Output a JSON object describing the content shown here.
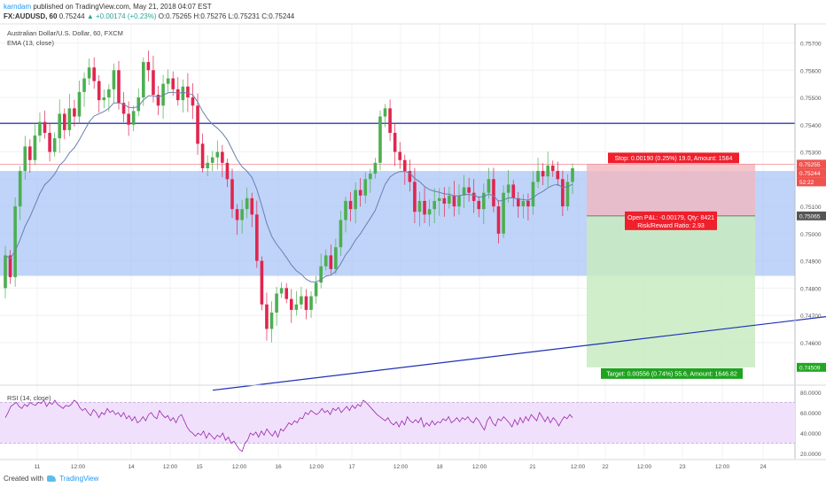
{
  "header": {
    "user": "karndam",
    "published": "published on TradingView.com, May 21, 2018 04:07 EST",
    "symbol": "FX:AUDUSD, 60",
    "last": "0.75244",
    "change_arrow": "▲",
    "change": "+0.00174 (+0.23%)",
    "ohlc": "O:0.75265 H:0.75276 L:0.75231 C:0.75244"
  },
  "labels": {
    "title": "Australian Dollar/U.S. Dollar, 60, FXCM",
    "ema": "EMA (13, close)",
    "rsi": "RSI (14, close)"
  },
  "footer": {
    "created": "Created with",
    "brand": "TradingView"
  },
  "colors": {
    "up": "#26a69a",
    "down": "#ef5350",
    "candle_up": "#4caf50",
    "candle_down": "#e0254f",
    "trendline": "#1f2fb8",
    "ema": "#6a7fb0",
    "zone": "#a9c5f5",
    "stop": "#f2b6bf",
    "target": "#c8ebc0",
    "rsi_band": "#f0e0fb",
    "rsi_line": "#9c27b0"
  },
  "chart_data": {
    "type": "candlestick",
    "symbol": "FX:AUDUSD",
    "interval": "60",
    "ylim": [
      0.7445,
      0.7577
    ],
    "price_ticks": [
      "0.75700",
      "0.75600",
      "0.75500",
      "0.75400",
      "0.75300",
      "0.75200",
      "0.75100",
      "0.75000",
      "0.74900",
      "0.74800",
      "0.74700",
      "0.74600"
    ],
    "x_ticks": [
      "11",
      "12:00",
      "14",
      "12:00",
      "15",
      "12:00",
      "16",
      "12:00",
      "17",
      "12:00",
      "18",
      "12:00",
      "21",
      "12:00",
      "22",
      "12:00",
      "23",
      "12:00",
      "24"
    ],
    "ohlc_path": [
      0.748,
      0.7492,
      0.7484,
      0.751,
      0.7523,
      0.7532,
      0.7527,
      0.7536,
      0.7541,
      0.7537,
      0.753,
      0.7535,
      0.7544,
      0.7538,
      0.7546,
      0.7543,
      0.7552,
      0.7557,
      0.7561,
      0.7556,
      0.7549,
      0.755,
      0.7553,
      0.756,
      0.7548,
      0.7544,
      0.754,
      0.7545,
      0.755,
      0.7563,
      0.756,
      0.7551,
      0.7547,
      0.7555,
      0.7557,
      0.7553,
      0.7549,
      0.7554,
      0.755,
      0.7547,
      0.7533,
      0.7524,
      0.7526,
      0.7528,
      0.753,
      0.7526,
      0.752,
      0.7509,
      0.7505,
      0.7509,
      0.7513,
      0.7507,
      0.749,
      0.7474,
      0.7465,
      0.7471,
      0.7478,
      0.748,
      0.7476,
      0.7472,
      0.7474,
      0.7477,
      0.7472,
      0.7477,
      0.7482,
      0.7488,
      0.7492,
      0.7487,
      0.7495,
      0.7505,
      0.7512,
      0.7509,
      0.7516,
      0.7514,
      0.752,
      0.7522,
      0.7526,
      0.7543,
      0.7546,
      0.7537,
      0.753,
      0.7527,
      0.7523,
      0.7519,
      0.7508,
      0.7512,
      0.7507,
      0.7509,
      0.7512,
      0.7513,
      0.7511,
      0.7514,
      0.751,
      0.7514,
      0.7517,
      0.7515,
      0.7512,
      0.7509,
      0.7515,
      0.752,
      0.751,
      0.75,
      0.7515,
      0.7518,
      0.7513,
      0.751,
      0.7512,
      0.751,
      0.7519,
      0.7523,
      0.7521,
      0.7525,
      0.7523,
      0.752,
      0.751,
      0.7519,
      0.7524
    ],
    "ema_period": 13,
    "horizontal_line": 0.75405,
    "zone": [
      0.74845,
      0.7523
    ],
    "trendline": [
      {
        "x": 240,
        "y": 0.74425
      },
      {
        "x": 932,
        "y": 0.74695
      }
    ],
    "position": {
      "type": "long",
      "entry": 0.75065,
      "stop": 0.75255,
      "target": 0.74509,
      "stop_text": "Stop: 0.00190 (0.25%) 19.0, Amount: 1584",
      "pnl_text": "Open P&L: -0.00179, Qty: 8421",
      "rr_text": "Risk/Reward Ratio: 2.93",
      "target_text": "Target: 0.00556 (0.74%) 55.6, Amount: 1646.82"
    },
    "price_badges": [
      {
        "text": "0.75255",
        "value": 0.75255,
        "color": "#ef5350"
      },
      {
        "text": "0.75244",
        "value": 0.75244,
        "color": "#ef5350"
      },
      {
        "text": "52:22",
        "value": 0.75222,
        "color": "#ef5350"
      },
      {
        "text": "0.75065",
        "value": 0.75065,
        "color": "#555555"
      },
      {
        "text": "0.74509",
        "value": 0.74509,
        "color": "#22a722"
      }
    ],
    "rsi": {
      "period": 14,
      "ylim": [
        15,
        85
      ],
      "ticks": [
        "80.0000",
        "60.0000",
        "40.0000",
        "20.0000"
      ],
      "overbought": 70,
      "oversold": 30,
      "values": [
        55,
        60,
        66,
        68,
        70,
        66,
        64,
        68,
        66,
        70,
        68,
        67,
        70,
        69,
        72,
        66,
        70,
        68,
        72,
        68,
        66,
        64,
        67,
        66,
        68,
        72,
        70,
        65,
        62,
        64,
        60,
        57,
        63,
        60,
        55,
        60,
        58,
        64,
        60,
        62,
        58,
        60,
        56,
        60,
        54,
        57,
        52,
        56,
        50,
        52,
        56,
        52,
        58,
        60,
        56,
        54,
        62,
        58,
        55,
        57,
        52,
        55,
        50,
        56,
        58,
        52,
        46,
        42,
        40,
        37,
        40,
        38,
        42,
        35,
        40,
        37,
        34,
        38,
        36,
        40,
        33,
        36,
        30,
        32,
        28,
        24,
        22,
        30,
        33,
        40,
        38,
        41,
        36,
        42,
        38,
        44,
        40,
        37,
        42,
        36,
        44,
        42,
        46,
        50,
        48,
        52,
        50,
        55,
        54,
        60,
        58,
        62,
        60,
        58,
        60,
        64,
        60,
        62,
        58,
        64,
        62,
        65,
        60,
        63,
        66,
        62,
        67,
        64,
        68,
        66,
        72,
        70,
        67,
        64,
        61,
        58,
        56,
        54,
        52,
        55,
        50,
        48,
        51,
        46,
        52,
        48,
        56,
        52,
        50,
        53,
        50,
        55,
        46,
        50,
        47,
        52,
        48,
        51,
        50,
        54,
        52,
        56,
        50,
        52,
        55,
        51,
        55,
        53,
        56,
        52,
        50,
        55,
        52,
        47,
        43,
        52,
        56,
        50,
        47,
        54,
        52,
        56,
        53,
        50,
        46,
        53,
        48,
        55,
        50,
        56,
        52,
        58,
        55,
        52,
        60,
        56,
        51,
        56,
        50,
        55,
        52,
        47,
        52,
        56,
        54,
        58,
        55
      ]
    }
  }
}
